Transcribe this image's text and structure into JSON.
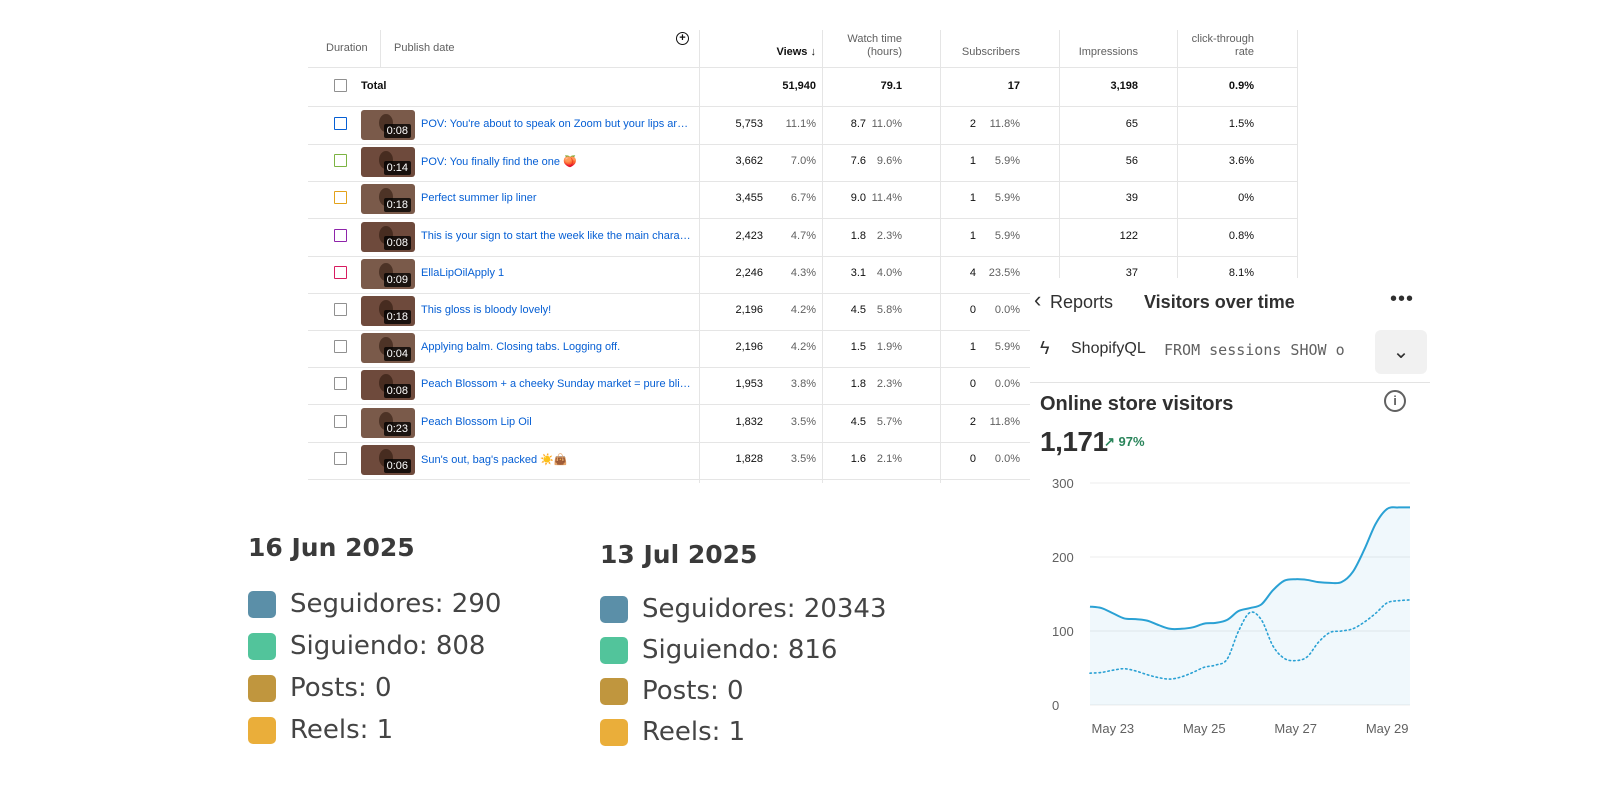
{
  "yt_table": {
    "headers": {
      "duration": "Duration",
      "publish_date": "Publish date",
      "views": "Views",
      "sort_arrow": "↓",
      "watch_time_1": "Watch time",
      "watch_time_2": "(hours)",
      "subscribers": "Subscribers",
      "impressions": "Impressions",
      "ctr_1": "click-through",
      "ctr_2": "rate"
    },
    "add_column_icon": "+",
    "total": {
      "label": "Total",
      "views": "51,940",
      "watch": "79.1",
      "subs": "17",
      "impressions": "3,198",
      "ctr": "0.9%"
    },
    "rows": [
      {
        "duration": "0:08",
        "title": "POV: You're about to speak on Zoom but your lips are ...",
        "views": "5,753",
        "views_pct": "11.1%",
        "watch": "8.7",
        "watch_pct": "11.0%",
        "subs": "2",
        "subs_pct": "11.8%",
        "impressions": "65",
        "ctr": "1.5%",
        "color": "#065fd4"
      },
      {
        "duration": "0:14",
        "title": "POV: You finally find the one 🍑",
        "views": "3,662",
        "views_pct": "7.0%",
        "watch": "7.6",
        "watch_pct": "9.6%",
        "subs": "1",
        "subs_pct": "5.9%",
        "impressions": "56",
        "ctr": "3.6%",
        "color": "#7cb342"
      },
      {
        "duration": "0:18",
        "title": "Perfect summer lip liner",
        "views": "3,455",
        "views_pct": "6.7%",
        "watch": "9.0",
        "watch_pct": "11.4%",
        "subs": "1",
        "subs_pct": "5.9%",
        "impressions": "39",
        "ctr": "0%",
        "color": "#e3a21a"
      },
      {
        "duration": "0:08",
        "title": "This is your sign to start the week like the main charac...",
        "views": "2,423",
        "views_pct": "4.7%",
        "watch": "1.8",
        "watch_pct": "2.3%",
        "subs": "1",
        "subs_pct": "5.9%",
        "impressions": "122",
        "ctr": "0.8%",
        "color": "#8e24aa"
      },
      {
        "duration": "0:09",
        "title": "EllaLipOilApply 1",
        "views": "2,246",
        "views_pct": "4.3%",
        "watch": "3.1",
        "watch_pct": "4.0%",
        "subs": "4",
        "subs_pct": "23.5%",
        "impressions": "37",
        "ctr": "8.1%",
        "color": "#d81b60"
      },
      {
        "duration": "0:18",
        "title": "This gloss is bloody lovely!",
        "views": "2,196",
        "views_pct": "4.2%",
        "watch": "4.5",
        "watch_pct": "5.8%",
        "subs": "0",
        "subs_pct": "0.0%",
        "impressions": "",
        "ctr": "",
        "color": "#909090"
      },
      {
        "duration": "0:04",
        "title": "Applying balm. Closing tabs. Logging off.",
        "views": "2,196",
        "views_pct": "4.2%",
        "watch": "1.5",
        "watch_pct": "1.9%",
        "subs": "1",
        "subs_pct": "5.9%",
        "impressions": "",
        "ctr": "",
        "color": "#909090"
      },
      {
        "duration": "0:08",
        "title": "Peach Blossom + a cheeky Sunday market = pure bliss...",
        "views": "1,953",
        "views_pct": "3.8%",
        "watch": "1.8",
        "watch_pct": "2.3%",
        "subs": "0",
        "subs_pct": "0.0%",
        "impressions": "",
        "ctr": "",
        "color": "#909090"
      },
      {
        "duration": "0:23",
        "title": "Peach Blossom Lip Oil",
        "views": "1,832",
        "views_pct": "3.5%",
        "watch": "4.5",
        "watch_pct": "5.7%",
        "subs": "2",
        "subs_pct": "11.8%",
        "impressions": "",
        "ctr": "",
        "color": "#909090"
      },
      {
        "duration": "0:06",
        "title": "Sun's out, bag's packed ☀️👜",
        "views": "1,828",
        "views_pct": "3.5%",
        "watch": "1.6",
        "watch_pct": "2.1%",
        "subs": "0",
        "subs_pct": "0.0%",
        "impressions": "",
        "ctr": "",
        "color": "#909090"
      }
    ]
  },
  "stats": [
    {
      "date": "16 Jun 2025",
      "items": [
        {
          "label": "Seguidores: 290",
          "color": "#5b8fa8"
        },
        {
          "label": "Siguiendo: 808",
          "color": "#52c49b"
        },
        {
          "label": "Posts: 0",
          "color": "#c0963e"
        },
        {
          "label": "Reels: 1",
          "color": "#eaae3a"
        }
      ]
    },
    {
      "date": "13 Jul 2025",
      "items": [
        {
          "label": "Seguidores: 20343",
          "color": "#5b8fa8"
        },
        {
          "label": "Siguiendo: 816",
          "color": "#52c49b"
        },
        {
          "label": "Posts: 0",
          "color": "#c0963e"
        },
        {
          "label": "Reels: 1",
          "color": "#eaae3a"
        }
      ]
    }
  ],
  "shopify": {
    "back_label": "Reports",
    "page_title": "Visitors over time",
    "more_icon": "•••",
    "query_name": "ShopifyQL",
    "query_code": "FROM sessions SHOW o",
    "card_title": "Online store visitors",
    "total": "1,171",
    "delta": "↗ 97%",
    "accent": "#2aa1d4"
  },
  "chart_data": {
    "type": "line",
    "title": "Online store visitors",
    "xlabel": "",
    "ylabel": "",
    "ylim": [
      0,
      300
    ],
    "yticks": [
      "300",
      "200",
      "100",
      "0"
    ],
    "x": [
      0,
      0.5,
      1,
      1.5,
      2,
      2.5,
      3,
      3.5,
      4,
      4.5,
      5,
      5.5,
      6,
      6.5,
      7,
      7.5,
      8,
      8.5,
      9,
      9.5,
      10,
      10.5,
      11,
      11.5,
      12,
      12.5,
      13,
      13.5,
      14
    ],
    "xticks": [
      {
        "x": 1,
        "label": "May 23"
      },
      {
        "x": 5,
        "label": "May 25"
      },
      {
        "x": 9,
        "label": "May 27"
      },
      {
        "x": 13,
        "label": "May 29"
      }
    ],
    "grid": true,
    "series": [
      {
        "style": "solid",
        "values": [
          133,
          131,
          124,
          117,
          116,
          114,
          108,
          103,
          103,
          105,
          110,
          111,
          115,
          127,
          131,
          136,
          155,
          168,
          170,
          169,
          166,
          165,
          166,
          180,
          210,
          245,
          265,
          267,
          267
        ]
      },
      {
        "style": "dotted",
        "values": [
          43,
          44,
          47,
          49,
          46,
          41,
          37,
          35,
          38,
          44,
          51,
          54,
          62,
          100,
          125,
          115,
          80,
          63,
          60,
          65,
          85,
          98,
          100,
          103,
          112,
          124,
          138,
          141,
          142
        ]
      }
    ]
  }
}
